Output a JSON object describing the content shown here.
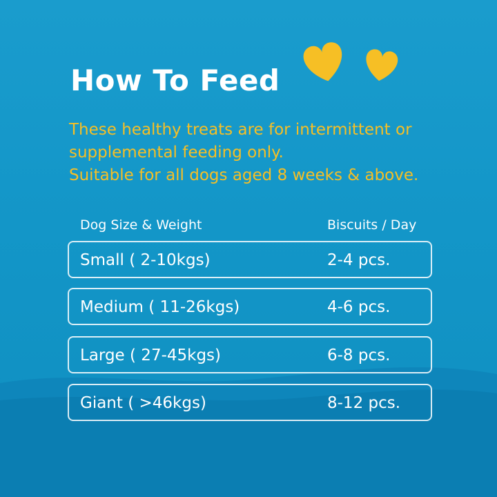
{
  "title": "How To Feed",
  "intro": {
    "line1": "These healthy treats are for intermittent or",
    "line2": "supplemental feeding only.",
    "line3": "Suitable for all dogs aged 8 weeks & above."
  },
  "table": {
    "headers": {
      "size": "Dog Size & Weight",
      "biscuits": "Biscuits / Day"
    },
    "rows": [
      {
        "size": "Small ( 2-10kgs)",
        "biscuits": "2-4 pcs."
      },
      {
        "size": "Medium ( 11-26kgs)",
        "biscuits": "4-6 pcs."
      },
      {
        "size": "Large ( 27-45kgs)",
        "biscuits": "6-8 pcs."
      },
      {
        "size": "Giant ( >46kgs)",
        "biscuits": "8-12 pcs."
      }
    ]
  },
  "decorations": {
    "hearts": [
      "heart-icon",
      "heart-icon"
    ]
  },
  "colors": {
    "background": "#1396c8",
    "wave": "#0c7fb3",
    "accent_yellow": "#f6bf25",
    "text_white": "#ffffff"
  }
}
